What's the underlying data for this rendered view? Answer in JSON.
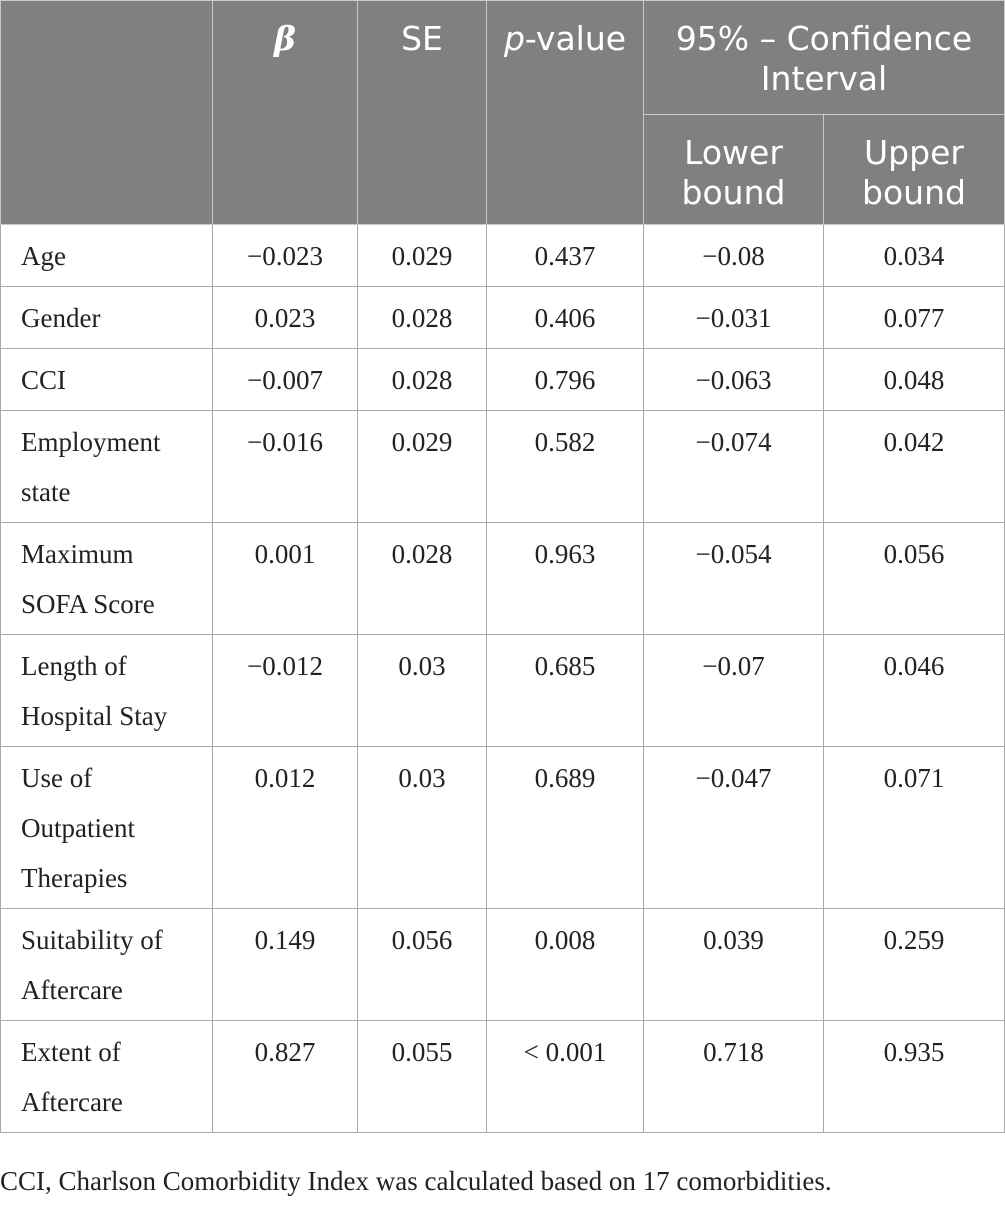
{
  "table": {
    "headers": {
      "beta": "β",
      "se": "SE",
      "p_italic": "p",
      "p_rest": "-value",
      "ci_group": "95% – Confidence Interval",
      "lower": "Lower bound",
      "upper": "Upper bound"
    },
    "rows": [
      {
        "label": "Age",
        "beta": "−0.023",
        "se": "0.029",
        "p": "0.437",
        "lower": "−0.08",
        "upper": "0.034"
      },
      {
        "label": "Gender",
        "beta": "0.023",
        "se": "0.028",
        "p": "0.406",
        "lower": "−0.031",
        "upper": "0.077"
      },
      {
        "label": "CCI",
        "beta": "−0.007",
        "se": "0.028",
        "p": "0.796",
        "lower": "−0.063",
        "upper": "0.048"
      },
      {
        "label": "Employment state",
        "beta": "−0.016",
        "se": "0.029",
        "p": "0.582",
        "lower": "−0.074",
        "upper": "0.042"
      },
      {
        "label": "Maximum SOFA Score",
        "beta": "0.001",
        "se": "0.028",
        "p": "0.963",
        "lower": "−0.054",
        "upper": "0.056"
      },
      {
        "label": "Length of Hospital Stay",
        "beta": "−0.012",
        "se": "0.03",
        "p": "0.685",
        "lower": "−0.07",
        "upper": "0.046"
      },
      {
        "label": "Use of Outpatient Therapies",
        "beta": "0.012",
        "se": "0.03",
        "p": "0.689",
        "lower": "−0.047",
        "upper": "0.071"
      },
      {
        "label": "Suitability of Aftercare",
        "beta": "0.149",
        "se": "0.056",
        "p": "0.008",
        "lower": "0.039",
        "upper": "0.259"
      },
      {
        "label": "Extent of Aftercare",
        "beta": "0.827",
        "se": "0.055",
        "p": "< 0.001",
        "lower": "0.718",
        "upper": "0.935"
      }
    ]
  },
  "footnote": "CCI, Charlson Comorbidity Index was calculated based on 17 comorbidities."
}
